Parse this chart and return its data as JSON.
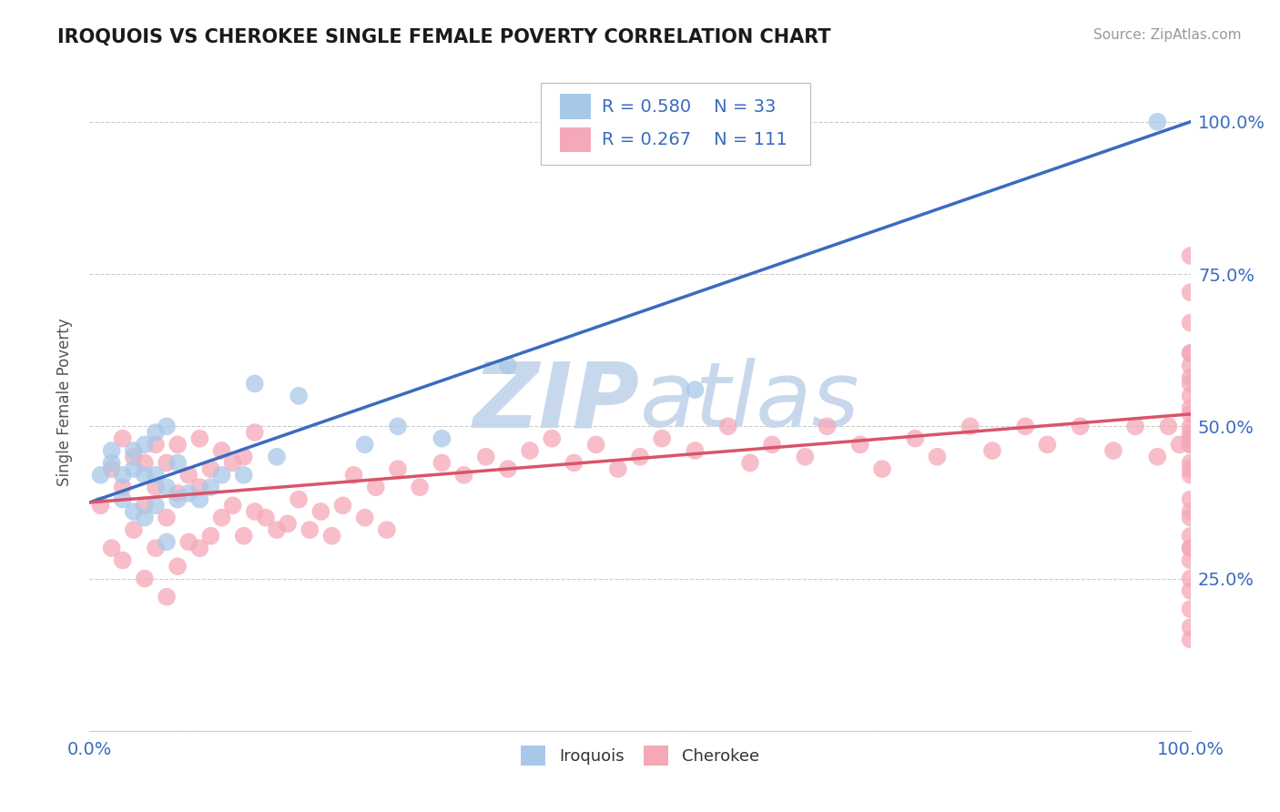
{
  "title": "IROQUOIS VS CHEROKEE SINGLE FEMALE POVERTY CORRELATION CHART",
  "source": "Source: ZipAtlas.com",
  "ylabel": "Single Female Poverty",
  "iroquois_color": "#a8c8e8",
  "cherokee_color": "#f5a8b8",
  "iroquois_line_color": "#3a6bbf",
  "cherokee_line_color": "#d9546a",
  "background_color": "#ffffff",
  "grid_color": "#cccccc",
  "watermark_color": "#dce6f0",
  "title_color": "#1a1a1a",
  "axis_label_color": "#3a6bbf",
  "legend_text_color": "#3a6bbf",
  "legend_label_color": "#222222",
  "xlim": [
    0.0,
    1.0
  ],
  "ylim": [
    0.0,
    1.08
  ],
  "iroquois_x": [
    0.01,
    0.02,
    0.02,
    0.03,
    0.03,
    0.04,
    0.04,
    0.04,
    0.05,
    0.05,
    0.05,
    0.06,
    0.06,
    0.06,
    0.07,
    0.07,
    0.07,
    0.08,
    0.08,
    0.09,
    0.1,
    0.11,
    0.12,
    0.14,
    0.15,
    0.17,
    0.19,
    0.25,
    0.28,
    0.32,
    0.38,
    0.55,
    0.97
  ],
  "iroquois_y": [
    0.42,
    0.44,
    0.46,
    0.38,
    0.42,
    0.36,
    0.43,
    0.46,
    0.35,
    0.42,
    0.47,
    0.37,
    0.42,
    0.49,
    0.31,
    0.4,
    0.5,
    0.38,
    0.44,
    0.39,
    0.38,
    0.4,
    0.42,
    0.42,
    0.57,
    0.45,
    0.55,
    0.47,
    0.5,
    0.48,
    0.6,
    0.56,
    1.0
  ],
  "cherokee_x": [
    0.01,
    0.02,
    0.02,
    0.03,
    0.03,
    0.03,
    0.04,
    0.04,
    0.05,
    0.05,
    0.05,
    0.06,
    0.06,
    0.06,
    0.07,
    0.07,
    0.07,
    0.08,
    0.08,
    0.08,
    0.09,
    0.09,
    0.1,
    0.1,
    0.1,
    0.11,
    0.11,
    0.12,
    0.12,
    0.13,
    0.13,
    0.14,
    0.14,
    0.15,
    0.15,
    0.16,
    0.17,
    0.18,
    0.19,
    0.2,
    0.21,
    0.22,
    0.23,
    0.24,
    0.25,
    0.26,
    0.27,
    0.28,
    0.3,
    0.32,
    0.34,
    0.36,
    0.38,
    0.4,
    0.42,
    0.44,
    0.46,
    0.48,
    0.5,
    0.52,
    0.55,
    0.58,
    0.6,
    0.62,
    0.65,
    0.67,
    0.7,
    0.72,
    0.75,
    0.77,
    0.8,
    0.82,
    0.85,
    0.87,
    0.9,
    0.93,
    0.95,
    0.97,
    0.98,
    0.99,
    1.0,
    1.0,
    1.0,
    1.0,
    1.0,
    1.0,
    1.0,
    1.0,
    1.0,
    1.0,
    1.0,
    1.0,
    1.0,
    1.0,
    1.0,
    1.0,
    1.0,
    1.0,
    1.0,
    1.0,
    1.0,
    1.0,
    1.0,
    1.0,
    1.0,
    1.0,
    1.0,
    1.0,
    1.0,
    1.0,
    1.0
  ],
  "cherokee_y": [
    0.37,
    0.3,
    0.43,
    0.28,
    0.4,
    0.48,
    0.33,
    0.45,
    0.25,
    0.37,
    0.44,
    0.3,
    0.4,
    0.47,
    0.22,
    0.35,
    0.44,
    0.27,
    0.39,
    0.47,
    0.31,
    0.42,
    0.3,
    0.4,
    0.48,
    0.32,
    0.43,
    0.35,
    0.46,
    0.37,
    0.44,
    0.32,
    0.45,
    0.36,
    0.49,
    0.35,
    0.33,
    0.34,
    0.38,
    0.33,
    0.36,
    0.32,
    0.37,
    0.42,
    0.35,
    0.4,
    0.33,
    0.43,
    0.4,
    0.44,
    0.42,
    0.45,
    0.43,
    0.46,
    0.48,
    0.44,
    0.47,
    0.43,
    0.45,
    0.48,
    0.46,
    0.5,
    0.44,
    0.47,
    0.45,
    0.5,
    0.47,
    0.43,
    0.48,
    0.45,
    0.5,
    0.46,
    0.5,
    0.47,
    0.5,
    0.46,
    0.5,
    0.45,
    0.5,
    0.47,
    0.5,
    0.57,
    0.47,
    0.43,
    0.62,
    0.32,
    0.38,
    0.2,
    0.6,
    0.53,
    0.48,
    0.28,
    0.44,
    0.35,
    0.55,
    0.23,
    0.62,
    0.67,
    0.3,
    0.47,
    0.58,
    0.36,
    0.49,
    0.72,
    0.78,
    0.25,
    0.42,
    0.17,
    0.3,
    0.52,
    0.15
  ],
  "iroquois_trend": [
    0.0,
    0.375,
    1.0,
    1.0
  ],
  "cherokee_trend": [
    0.0,
    0.375,
    1.0,
    0.52
  ],
  "ytick_positions": [
    0.0,
    0.25,
    0.5,
    0.75,
    1.0
  ],
  "ytick_labels_right": [
    "",
    "25.0%",
    "50.0%",
    "75.0%",
    "100.0%"
  ],
  "xtick_positions": [
    0.0,
    1.0
  ],
  "xtick_labels": [
    "0.0%",
    "100.0%"
  ]
}
